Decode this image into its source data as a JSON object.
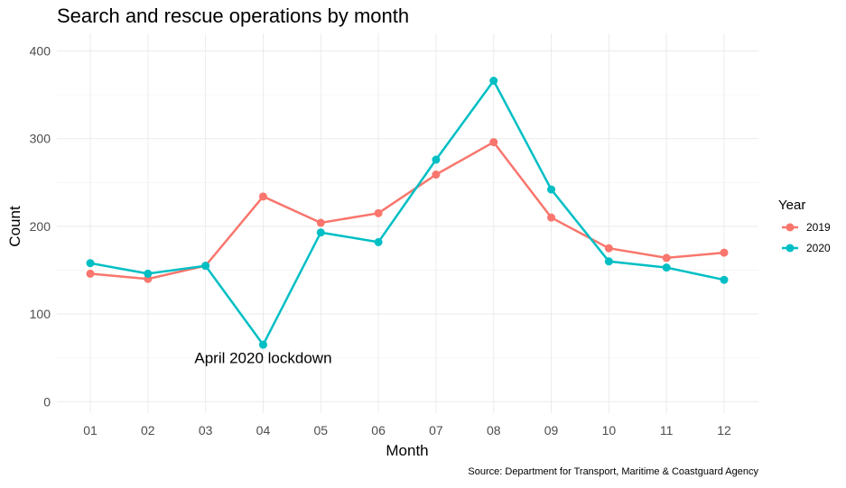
{
  "chart_data": {
    "type": "line",
    "title": "Search and rescue operations by month",
    "xlabel": "Month",
    "ylabel": "Count",
    "categories": [
      "01",
      "02",
      "03",
      "04",
      "05",
      "06",
      "07",
      "08",
      "09",
      "10",
      "11",
      "12"
    ],
    "ylim": [
      -13,
      420
    ],
    "yticks": [
      0,
      100,
      200,
      300,
      400
    ],
    "grid": true,
    "legend": {
      "title": "Year",
      "placement": "right"
    },
    "series": [
      {
        "name": "2019",
        "color": "#F8766D",
        "values": [
          146,
          140,
          155,
          234,
          204,
          215,
          259,
          296,
          210,
          175,
          164,
          170
        ]
      },
      {
        "name": "2020",
        "color": "#00BFC4",
        "values": [
          158,
          146,
          155,
          65,
          193,
          182,
          276,
          366,
          242,
          160,
          153,
          139
        ]
      }
    ],
    "annotations": [
      {
        "text": "April 2020 lockdown",
        "x": "04",
        "y": 50
      }
    ],
    "caption": "Source: Department for Transport, Maritime & Coastguard Agency"
  }
}
